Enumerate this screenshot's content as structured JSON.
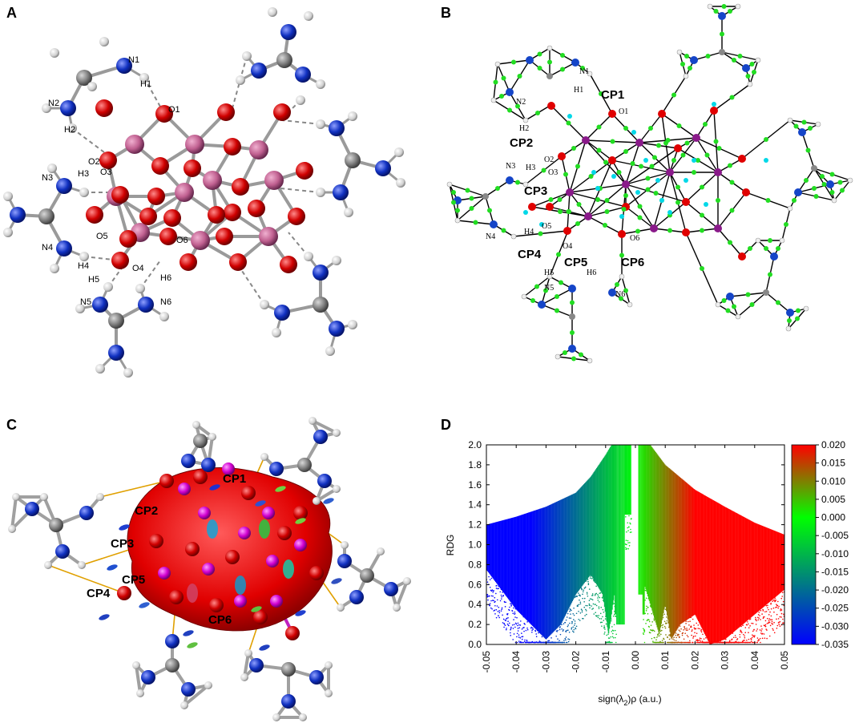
{
  "panels": {
    "a": {
      "letter": "A",
      "atom_labels": [
        "N1",
        "H1",
        "N2",
        "H2",
        "O1",
        "O2",
        "O3",
        "N3",
        "H3",
        "N4",
        "H4",
        "O4",
        "O5",
        "O6",
        "H5",
        "H6",
        "N5",
        "N6"
      ]
    },
    "b": {
      "letter": "B",
      "atom_labels": [
        "N1",
        "H1",
        "N2",
        "H2",
        "O1",
        "O2",
        "O3",
        "N3",
        "H3",
        "N4",
        "H4",
        "O4",
        "O5",
        "O6",
        "H5",
        "H6",
        "N5",
        "N6"
      ],
      "cp_labels": [
        "CP1",
        "CP2",
        "CP3",
        "CP4",
        "CP5",
        "CP6"
      ]
    },
    "c": {
      "letter": "C",
      "cp_labels": [
        "CP1",
        "CP2",
        "CP3",
        "CP4",
        "CP5",
        "CP6"
      ]
    },
    "d": {
      "letter": "D"
    }
  },
  "chart_data": {
    "type": "scatter",
    "title": "",
    "xlabel": "sign(λ2)ρ (a.u.)",
    "ylabel": "RDG",
    "xlim": [
      -0.05,
      0.05
    ],
    "ylim": [
      0.0,
      2.0
    ],
    "x_ticks": [
      "-0.05",
      "-0.04",
      "-0.03",
      "-0.02",
      "-0.01",
      "0.00",
      "0.01",
      "0.02",
      "0.03",
      "0.04",
      "0.05"
    ],
    "y_ticks": [
      "0.0",
      "0.2",
      "0.4",
      "0.6",
      "0.8",
      "1.0",
      "1.2",
      "1.4",
      "1.6",
      "1.8",
      "2.0"
    ],
    "colorbar": {
      "range": [
        -0.035,
        0.02
      ],
      "ticks": [
        "0.020",
        "0.015",
        "0.010",
        "0.005",
        "0.000",
        "-0.005",
        "-0.010",
        "-0.015",
        "-0.020",
        "-0.025",
        "-0.030",
        "-0.035"
      ],
      "colors": [
        "#0000ff",
        "#00ff00",
        "#ff0000"
      ]
    },
    "envelope": {
      "description_points_left": [
        [
          -0.05,
          1.2
        ],
        [
          -0.04,
          1.28
        ],
        [
          -0.03,
          1.38
        ],
        [
          -0.02,
          1.52
        ],
        [
          -0.015,
          1.68
        ],
        [
          -0.01,
          1.9
        ],
        [
          -0.008,
          2.0
        ]
      ],
      "description_points_right": [
        [
          0.005,
          2.0
        ],
        [
          0.01,
          1.8
        ],
        [
          0.02,
          1.55
        ],
        [
          0.03,
          1.38
        ],
        [
          0.04,
          1.22
        ],
        [
          0.05,
          1.1
        ]
      ],
      "lower_points_left": [
        [
          -0.05,
          0.75
        ],
        [
          -0.04,
          0.35
        ],
        [
          -0.03,
          0.05
        ],
        [
          -0.025,
          0.2
        ],
        [
          -0.02,
          0.5
        ],
        [
          -0.015,
          0.7
        ],
        [
          -0.011,
          0.5
        ],
        [
          -0.009,
          0.1
        ],
        [
          -0.007,
          0.5
        ]
      ],
      "lower_points_right": [
        [
          0.003,
          0.6
        ],
        [
          0.006,
          0.3
        ],
        [
          0.008,
          0.1
        ],
        [
          0.01,
          0.4
        ],
        [
          0.012,
          0.05
        ],
        [
          0.015,
          0.2
        ],
        [
          0.02,
          0.3
        ],
        [
          0.025,
          0.0
        ],
        [
          0.03,
          0.05
        ],
        [
          0.04,
          0.3
        ],
        [
          0.05,
          0.55
        ]
      ]
    }
  }
}
